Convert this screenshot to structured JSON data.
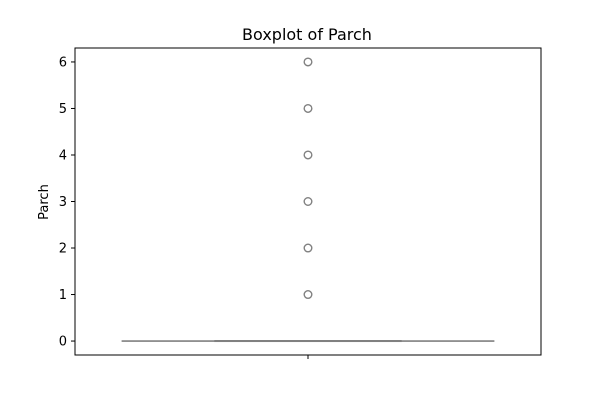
{
  "chart_data": {
    "type": "box",
    "title": "Boxplot of Parch",
    "xlabel": "",
    "ylabel": "Parch",
    "ylim": [
      -0.3,
      6.3
    ],
    "yticks": [
      0,
      1,
      2,
      3,
      4,
      5,
      6
    ],
    "grid": false,
    "legend": "none",
    "box": {
      "min": 0,
      "q1": 0,
      "median": 0,
      "q3": 0,
      "max": 0
    },
    "outliers": [
      1,
      2,
      3,
      4,
      5,
      6
    ],
    "colors": {
      "box": "#808080",
      "outlier": "#808080",
      "axis": "#000000"
    }
  }
}
